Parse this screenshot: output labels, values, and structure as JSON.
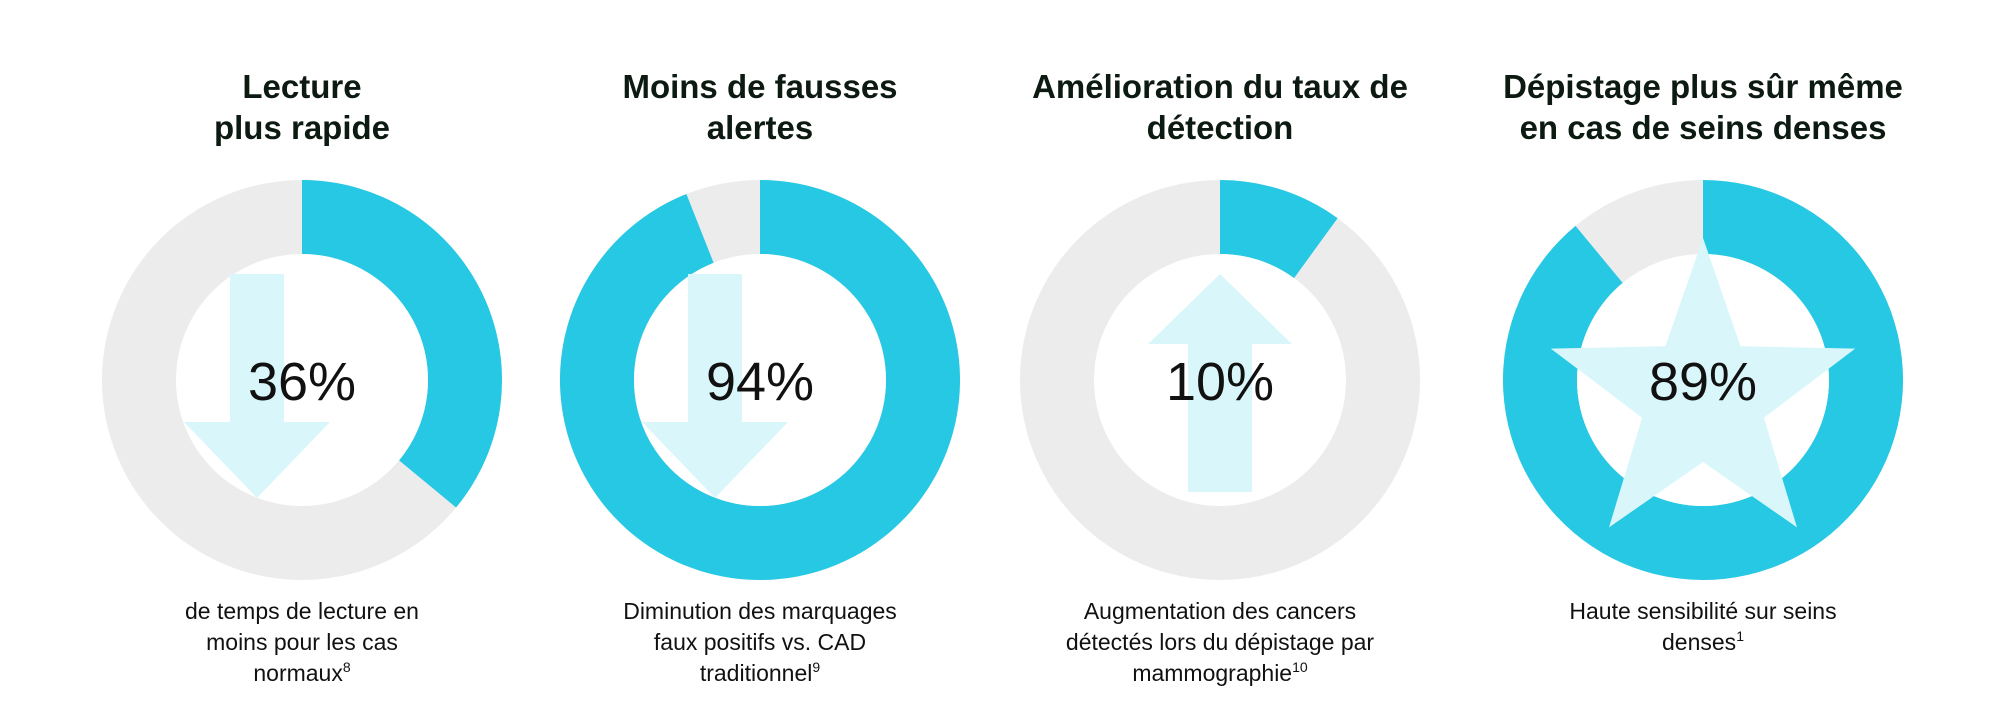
{
  "colors": {
    "accent": "#26c8e4",
    "track": "#ececec",
    "icon": "#d9f7fb",
    "hole": "#ffffff"
  },
  "chart_data": [
    {
      "type": "pie",
      "title": [
        "Lecture",
        "plus rapide"
      ],
      "value": 36,
      "label": "36%",
      "icon": "arrow-down",
      "caption": [
        "de temps de lecture en",
        "moins pour les cas",
        "normaux"
      ],
      "footnote": "8"
    },
    {
      "type": "pie",
      "title": [
        "Moins de fausses",
        "alertes"
      ],
      "value": 94,
      "label": "94%",
      "icon": "arrow-down",
      "caption": [
        "Diminution des marquages",
        "faux positifs vs. CAD",
        "traditionnel"
      ],
      "footnote": "9"
    },
    {
      "type": "pie",
      "title": [
        "Amélioration du taux de",
        "détection"
      ],
      "value": 10,
      "label": "10%",
      "icon": "arrow-up",
      "caption": [
        "Augmentation des cancers",
        "détectés lors du dépistage par",
        "mammographie"
      ],
      "footnote": "10"
    },
    {
      "type": "pie",
      "title": [
        "Dépistage plus sûr même",
        "en cas de seins denses"
      ],
      "value": 89,
      "label": "89%",
      "icon": "star",
      "caption": [
        "Haute sensibilité sur seins",
        "denses"
      ],
      "footnote": "1"
    }
  ]
}
